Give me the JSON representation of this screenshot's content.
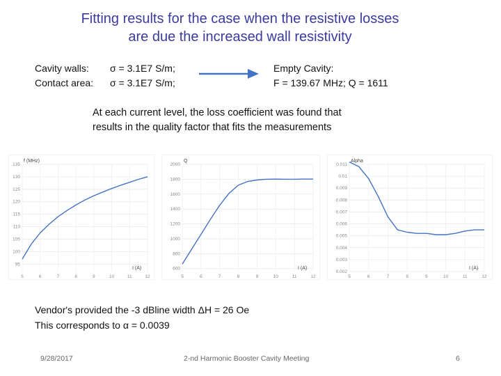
{
  "title": {
    "line1": "Fitting results for the case when the resistive losses",
    "line2": "are due the increased wall resistivity"
  },
  "walls": {
    "cavity_label": "Cavity walls:",
    "cavity_value": "σ = 3.1E7 S/m;",
    "contact_label": "Contact area:",
    "contact_value": "σ = 3.1E7 S/m;"
  },
  "empty_cavity": {
    "heading": "Empty Cavity:",
    "values": "F = 139.67 MHz; Q = 1611"
  },
  "arrow": {
    "icon": "right-arrow-icon",
    "color": "#4472c4"
  },
  "note": {
    "line1": "At each current level, the loss coefficient was found that",
    "line2": "results in the quality factor that fits the measurements"
  },
  "chart_data": [
    {
      "type": "line",
      "ylabel": "f (MHz)",
      "xlabel": "I (A)",
      "x_ticks": [
        "5",
        "6",
        "7",
        "8",
        "9",
        "10",
        "11",
        "12"
      ],
      "y_ticks": [
        "95",
        "100",
        "105",
        "110",
        "115",
        "120",
        "125",
        "130",
        "135"
      ],
      "xlim": [
        5,
        12
      ],
      "ylim": [
        92,
        135
      ],
      "grid": true,
      "series": [
        {
          "color": "#4472c4",
          "x": [
            5,
            5.5,
            6,
            6.5,
            7,
            7.5,
            8,
            8.5,
            9,
            9.5,
            10,
            10.5,
            11,
            11.5,
            12
          ],
          "y": [
            97,
            103,
            107.5,
            111,
            114,
            116.5,
            118.7,
            120.7,
            122.4,
            123.9,
            125.3,
            126.6,
            127.8,
            129,
            130
          ]
        }
      ]
    },
    {
      "type": "line",
      "ylabel": "Q",
      "xlabel": "I (A)",
      "x_ticks": [
        "5",
        "6",
        "7",
        "8",
        "9",
        "10",
        "11",
        "12"
      ],
      "y_ticks": [
        "600",
        "800",
        "1000",
        "1200",
        "1400",
        "1600",
        "1800",
        "2000"
      ],
      "xlim": [
        5,
        12
      ],
      "ylim": [
        560,
        2000
      ],
      "grid": true,
      "series": [
        {
          "color": "#4472c4",
          "x": [
            5,
            5.5,
            6,
            6.5,
            7,
            7.5,
            8,
            8.5,
            9,
            9.5,
            10,
            10.5,
            11,
            11.5,
            12
          ],
          "y": [
            660,
            860,
            1060,
            1260,
            1450,
            1610,
            1720,
            1770,
            1790,
            1800,
            1802,
            1800,
            1800,
            1802,
            1802
          ]
        }
      ]
    },
    {
      "type": "line",
      "ylabel": "Alpha",
      "xlabel": "I (A)",
      "x_ticks": [
        "5",
        "6",
        "7",
        "8",
        "9",
        "10",
        "11",
        "12"
      ],
      "y_ticks": [
        "0.002",
        "0.003",
        "0.004",
        "0.005",
        "0.006",
        "0.007",
        "0.008",
        "0.009",
        "0.01",
        "0.011"
      ],
      "xlim": [
        5,
        12
      ],
      "ylim": [
        0.002,
        0.011
      ],
      "grid": true,
      "series": [
        {
          "color": "#4472c4",
          "x": [
            5,
            5.5,
            6,
            6.5,
            7,
            7.5,
            8,
            8.5,
            9,
            9.5,
            10,
            10.5,
            11,
            11.5,
            12
          ],
          "y": [
            0.0112,
            0.0108,
            0.0098,
            0.0083,
            0.0066,
            0.0055,
            0.0053,
            0.0052,
            0.0052,
            0.0051,
            0.0051,
            0.0052,
            0.0054,
            0.0055,
            0.0055
          ]
        }
      ]
    }
  ],
  "vendor": {
    "line1": "Vendor's provided the -3 dBline width ΔH = 26 Oe",
    "line2": "This corresponds to α = 0.0039"
  },
  "footer": {
    "date": "9/28/2017",
    "meeting": "2-nd Harmonic Booster Cavity Meeting",
    "page": "6"
  }
}
